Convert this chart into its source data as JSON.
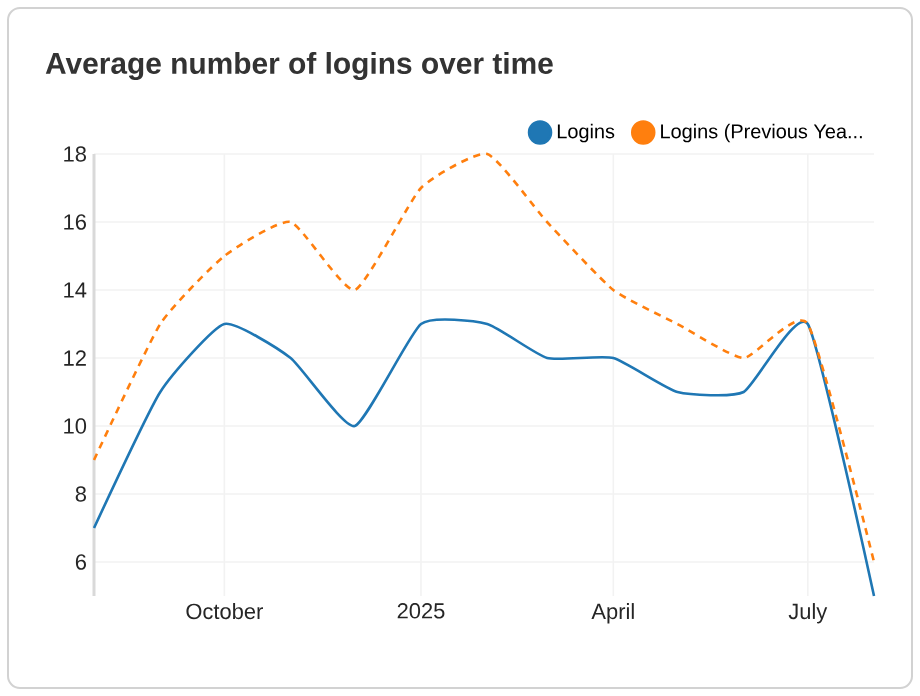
{
  "chart_data": {
    "type": "line",
    "title": "Average number of logins over time",
    "x": [
      "2024-08-01",
      "2024-09-01",
      "2024-10-01",
      "2024-11-01",
      "2024-12-01",
      "2025-01-01",
      "2025-02-01",
      "2025-03-01",
      "2025-04-01",
      "2025-05-01",
      "2025-06-01",
      "2025-07-01",
      "2025-08-01"
    ],
    "series": [
      {
        "name": "Logins",
        "color": "#1f77b4",
        "line_style": "solid",
        "values": [
          7,
          11,
          13,
          12,
          10,
          13,
          13,
          12,
          12,
          11,
          11,
          13,
          5
        ]
      },
      {
        "name": "Logins (Previous Yea...",
        "color": "#ff7f0e",
        "line_style": "dashed",
        "values": [
          9,
          13,
          15,
          16,
          14,
          17,
          18,
          16,
          14,
          13,
          12,
          13,
          6
        ]
      }
    ],
    "xlim": [
      "2024-08-01",
      "2025-08-01"
    ],
    "xticks": [
      {
        "value": "2024-10-01",
        "label": "October"
      },
      {
        "value": "2025-01-01",
        "label": "2025"
      },
      {
        "value": "2025-04-01",
        "label": "April"
      },
      {
        "value": "2025-07-01",
        "label": "July"
      }
    ],
    "ylim": [
      5,
      18
    ],
    "yticks": [
      6,
      8,
      10,
      12,
      14,
      16,
      18
    ],
    "grid": true,
    "legend": "top right",
    "marker": "none"
  }
}
